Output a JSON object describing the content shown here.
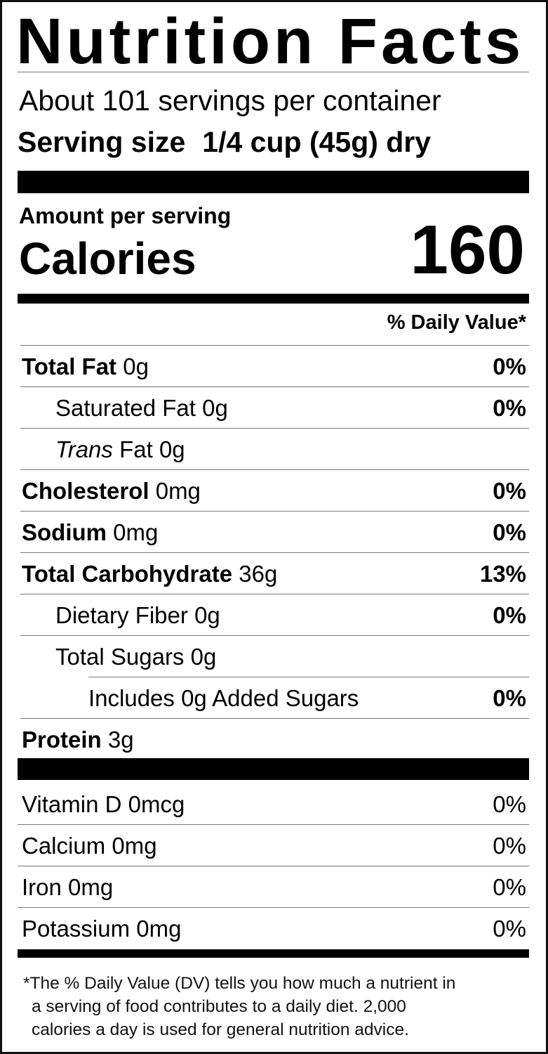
{
  "title": "Nutrition Facts",
  "servings_per_container": "About 101 servings per container",
  "serving_size_label": "Serving size",
  "serving_size_value": "1/4 cup (45g) dry",
  "amount_per_serving": "Amount per serving",
  "calories_label": "Calories",
  "calories_value": "160",
  "daily_value_header": "% Daily Value*",
  "nutrients": [
    {
      "name": "Total Fat",
      "amount": "0g",
      "dv": "0%"
    },
    {
      "name": "Saturated Fat",
      "amount": "0g",
      "dv": "0%"
    },
    {
      "name": "Trans",
      "name_suffix": "Fat",
      "amount": "0g",
      "dv": ""
    },
    {
      "name": "Cholesterol",
      "amount": "0mg",
      "dv": "0%"
    },
    {
      "name": "Sodium",
      "amount": "0mg",
      "dv": "0%"
    },
    {
      "name": "Total Carbohydrate",
      "amount": "36g",
      "dv": "13%"
    },
    {
      "name": "Dietary Fiber",
      "amount": "0g",
      "dv": "0%"
    },
    {
      "name": "Total Sugars",
      "amount": "0g",
      "dv": ""
    },
    {
      "name": "Includes 0g Added Sugars",
      "amount": "",
      "dv": "0%"
    },
    {
      "name": "Protein",
      "amount": "3g",
      "dv": ""
    }
  ],
  "vitamins": [
    {
      "name": "Vitamin D",
      "amount": "0mcg",
      "dv": "0%"
    },
    {
      "name": "Calcium",
      "amount": "0mg",
      "dv": "0%"
    },
    {
      "name": "Iron",
      "amount": "0mg",
      "dv": "0%"
    },
    {
      "name": "Potassium",
      "amount": "0mg",
      "dv": "0%"
    }
  ],
  "footnote": [
    "*The % Daily Value (DV) tells you how much a nutrient in",
    "a serving of food contributes to a daily diet. 2,000",
    "calories a day is used for general nutrition advice."
  ]
}
